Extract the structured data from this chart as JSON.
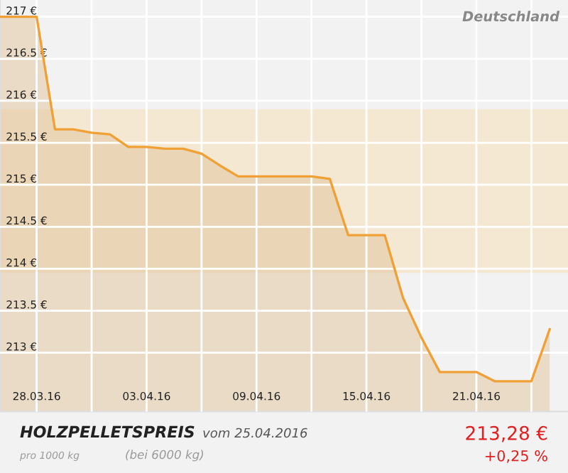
{
  "chart_data": {
    "type": "area",
    "title": "HOLZPELLETSPREIS",
    "subtitle": "vom 25.04.2016",
    "annotations": [
      "Deutschland",
      "pro 1000 kg",
      "(bei 6000 kg)",
      "213,28 €",
      "+0,25 %"
    ],
    "x": [
      "2016-03-26",
      "2016-03-27",
      "2016-03-28",
      "2016-03-29",
      "2016-03-30",
      "2016-03-31",
      "2016-04-01",
      "2016-04-02",
      "2016-04-03",
      "2016-04-04",
      "2016-04-05",
      "2016-04-06",
      "2016-04-07",
      "2016-04-08",
      "2016-04-09",
      "2016-04-10",
      "2016-04-11",
      "2016-04-12",
      "2016-04-13",
      "2016-04-14",
      "2016-04-15",
      "2016-04-16",
      "2016-04-17",
      "2016-04-18",
      "2016-04-19",
      "2016-04-20",
      "2016-04-21",
      "2016-04-22",
      "2016-04-23",
      "2016-04-24",
      "2016-04-25"
    ],
    "series": [
      {
        "color": "#f0a035",
        "values": [
          217.0,
          217.0,
          217.0,
          215.66,
          215.66,
          215.62,
          215.6,
          215.45,
          215.45,
          215.43,
          215.43,
          215.37,
          215.23,
          215.1,
          215.1,
          215.1,
          215.1,
          215.1,
          215.07,
          214.4,
          214.4,
          214.4,
          213.65,
          213.18,
          212.77,
          212.77,
          212.77,
          212.66,
          212.66,
          212.66,
          213.28
        ]
      }
    ],
    "xlim": [
      "2016-03-26",
      "2016-04-26"
    ],
    "xticks": [
      {
        "value": "2016-03-28",
        "label": "28.03.16"
      },
      {
        "value": "2016-03-31",
        "label": null
      },
      {
        "value": "2016-04-03",
        "label": "03.04.16"
      },
      {
        "value": "2016-04-06",
        "label": null
      },
      {
        "value": "2016-04-09",
        "label": "09.04.16"
      },
      {
        "value": "2016-04-12",
        "label": null
      },
      {
        "value": "2016-04-15",
        "label": "15.04.16"
      },
      {
        "value": "2016-04-18",
        "label": null
      },
      {
        "value": "2016-04-21",
        "label": "21.04.16"
      },
      {
        "value": "2016-04-24",
        "label": null
      }
    ],
    "ylim": [
      212.3,
      217.2
    ],
    "yticks": [
      {
        "value": 213,
        "label": "213 €"
      },
      {
        "value": 213.5,
        "label": "213.5 €"
      },
      {
        "value": 214,
        "label": "214 €"
      },
      {
        "value": 214.5,
        "label": "214.5 €"
      },
      {
        "value": 215,
        "label": "215 €"
      },
      {
        "value": 215.5,
        "label": "215.5 €"
      },
      {
        "value": 216,
        "label": "216 €"
      },
      {
        "value": 216.5,
        "label": "216.5 €"
      },
      {
        "value": 217,
        "label": "217 €"
      }
    ],
    "bands": [
      {
        "axis": "y",
        "from": 213.95,
        "to": 215.9,
        "color": "#f5e8d2"
      }
    ],
    "grid": true,
    "legend": false
  }
}
